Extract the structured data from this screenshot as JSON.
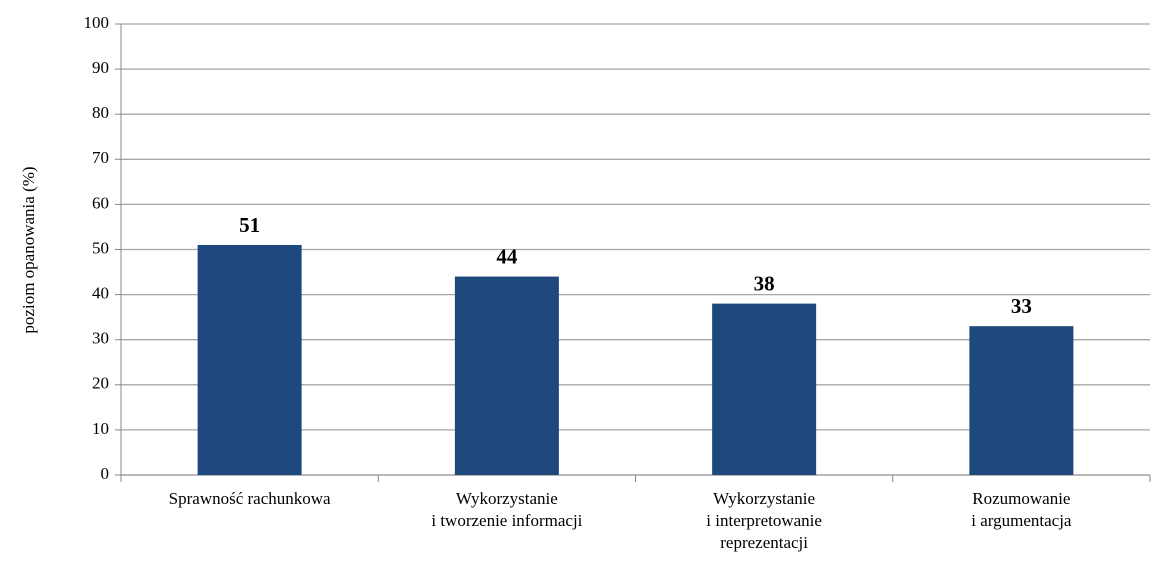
{
  "chart_data": {
    "type": "bar",
    "y_label": "poziom opanowania (%)",
    "categories": [
      "Sprawność rachunkowa",
      "Wykorzystanie\ni tworzenie  informacji",
      "Wykorzystanie\ni interpretowanie\nreprezentacji",
      "Rozumowanie\ni argumentacja"
    ],
    "values": [
      51,
      44,
      38,
      33
    ],
    "color": "#1f497d",
    "ylim": [
      0,
      100
    ],
    "yticks": [
      0,
      10,
      20,
      30,
      40,
      50,
      60,
      70,
      80,
      90,
      100
    ],
    "grid": true
  }
}
